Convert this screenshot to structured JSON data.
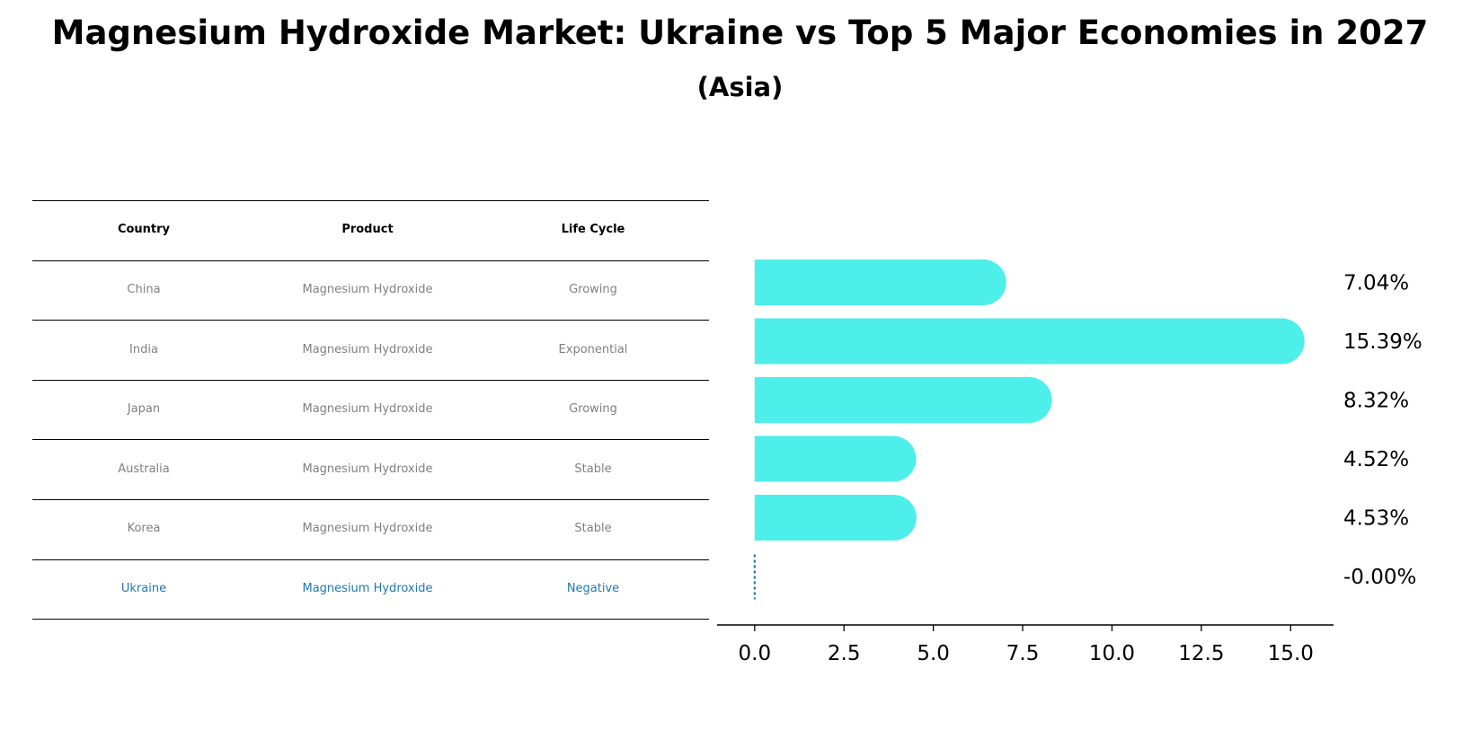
{
  "title": "Magnesium Hydroxide Market: Ukraine vs Top 5 Major Economies in 2027",
  "subtitle": "(Asia)",
  "colors": {
    "bar": "#4EEEEA",
    "highlight": "#1F77B4",
    "muted_text": "#808080"
  },
  "table": {
    "headers": [
      "Country",
      "Product",
      "Life Cycle"
    ],
    "rows": [
      {
        "country": "China",
        "product": "Magnesium Hydroxide",
        "life_cycle": "Growing",
        "highlight": false
      },
      {
        "country": "India",
        "product": "Magnesium Hydroxide",
        "life_cycle": "Exponential",
        "highlight": false
      },
      {
        "country": "Japan",
        "product": "Magnesium Hydroxide",
        "life_cycle": "Growing",
        "highlight": false
      },
      {
        "country": "Australia",
        "product": "Magnesium Hydroxide",
        "life_cycle": "Stable",
        "highlight": false
      },
      {
        "country": "Korea",
        "product": "Magnesium Hydroxide",
        "life_cycle": "Stable",
        "highlight": false
      },
      {
        "country": "Ukraine",
        "product": "Magnesium Hydroxide",
        "life_cycle": "Negative",
        "highlight": true
      }
    ]
  },
  "chart_data": {
    "type": "bar",
    "orientation": "horizontal",
    "categories": [
      "China",
      "India",
      "Japan",
      "Australia",
      "Korea",
      "Ukraine"
    ],
    "values": [
      7.04,
      15.39,
      8.32,
      4.52,
      4.53,
      -0.0
    ],
    "value_labels": [
      "7.04%",
      "15.39%",
      "8.32%",
      "4.52%",
      "4.53%",
      "-0.00%"
    ],
    "xlim": [
      -0.8,
      16.2
    ],
    "xticks": [
      0.0,
      2.5,
      5.0,
      7.5,
      10.0,
      12.5,
      15.0
    ],
    "xtick_labels": [
      "0.0",
      "2.5",
      "5.0",
      "7.5",
      "10.0",
      "12.5",
      "15.0"
    ],
    "xlabel": "",
    "ylabel": "",
    "grid": false
  }
}
